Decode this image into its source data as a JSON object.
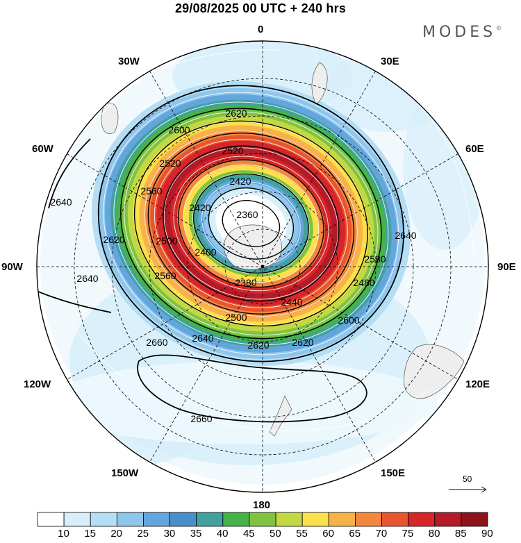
{
  "title": "29/08/2025  00 UTC  + 240 hrs",
  "brand": "MODES",
  "brand_mark": "©",
  "longitudes": {
    "l0": "0",
    "l30e": "30E",
    "l60e": "60E",
    "l90e": "90E",
    "l120e": "120E",
    "l150e": "150E",
    "l180": "180",
    "l150w": "150W",
    "l120w": "120W",
    "l90w": "90W",
    "l60w": "60W",
    "l30w": "30W"
  },
  "contour_labels": {
    "c2620a": "2620",
    "c2600a": "2600",
    "c2520a": "2520",
    "c2520b": "2520",
    "c2560a": "2560",
    "c2420a": "2420",
    "c2420b": "2420",
    "c2360a": "2360",
    "c2380a": "2380",
    "c2400a": "2400",
    "c2640a": "2640",
    "c2640b": "2640",
    "c2640c": "2640",
    "c2640d": "2640",
    "c2620b": "2620",
    "c2580a": "2580",
    "c2480a": "2480",
    "c2600b": "2600",
    "c2660a": "2660",
    "c2660b": "2660",
    "c2620c": "2620",
    "c2620d": "2620",
    "c2500a": "2500",
    "c2440a": "2440",
    "c2560b": "2560",
    "c2500b": "2500"
  },
  "scale_arrow_value": "50",
  "colorbar": {
    "levels": [
      "10",
      "15",
      "20",
      "25",
      "30",
      "35",
      "40",
      "45",
      "50",
      "55",
      "60",
      "65",
      "70",
      "75",
      "80",
      "85",
      "90"
    ],
    "colors": [
      "#ffffff",
      "#d7effb",
      "#b5def5",
      "#8ec6ec",
      "#63a6de",
      "#4a8fcc",
      "#42a0a0",
      "#44b34a",
      "#7fc343",
      "#c2d944",
      "#fae04b",
      "#f7b24a",
      "#f2873e",
      "#e8552e",
      "#d6262a",
      "#b51b26",
      "#8e1219"
    ]
  }
}
